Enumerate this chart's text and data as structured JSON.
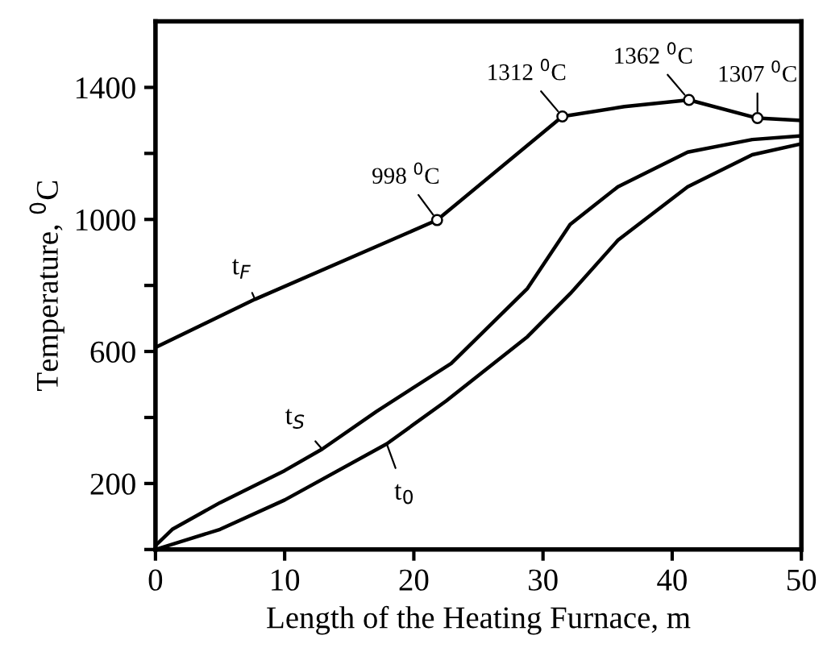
{
  "chart_data": {
    "type": "line",
    "xlabel": "Length of the Heating Furnace, m",
    "ylabel": "Temperature, $^{0}$C",
    "xlim": [
      0,
      50
    ],
    "xticks": [
      0,
      10,
      20,
      30,
      40,
      50
    ],
    "ylim": [
      0,
      1600
    ],
    "yticks": [
      {
        "value": 0,
        "label": null
      },
      200,
      {
        "value": 400,
        "label": null
      },
      600,
      {
        "value": 800,
        "label": null
      },
      1000,
      {
        "value": 1200,
        "label": null
      },
      1400
    ],
    "grid": false,
    "line_style": "solid",
    "series": [
      {
        "name": "t$_{F}$",
        "color": "#000000",
        "x": [
          0,
          7.7,
          21.8,
          31.5,
          36.3,
          41.3,
          46.6,
          50
        ],
        "values": [
          612,
          758,
          998,
          1312,
          1342,
          1362,
          1307,
          1300
        ]
      },
      {
        "name": "t$_{S}$",
        "color": "#000000",
        "x": [
          0,
          1.3,
          5,
          10,
          12.9,
          17.1,
          22.9,
          28.8,
          32.1,
          35.8,
          41.2,
          46.2,
          50
        ],
        "values": [
          12,
          61,
          142,
          239,
          304,
          418,
          564,
          791,
          985,
          1099,
          1204,
          1242,
          1253
        ]
      },
      {
        "name": "t$_{0}$",
        "color": "#000000",
        "x": [
          0,
          5,
          10,
          17.9,
          22.5,
          28.8,
          32.1,
          35.8,
          41.2,
          46.2,
          50
        ],
        "values": [
          0,
          61,
          150,
          320,
          450,
          645,
          775,
          937,
          1099,
          1196,
          1229
        ]
      }
    ],
    "annotations": [
      {
        "text": "998 $^{0}$C",
        "x": 21.8,
        "y": 998
      },
      {
        "text": "1312 $^{0}$C",
        "x": 31.5,
        "y": 1312
      },
      {
        "text": "1362 $^{0}$C",
        "x": 41.3,
        "y": 1362
      },
      {
        "text": "1307 $^{0}$C",
        "x": 46.6,
        "y": 1307
      }
    ]
  }
}
